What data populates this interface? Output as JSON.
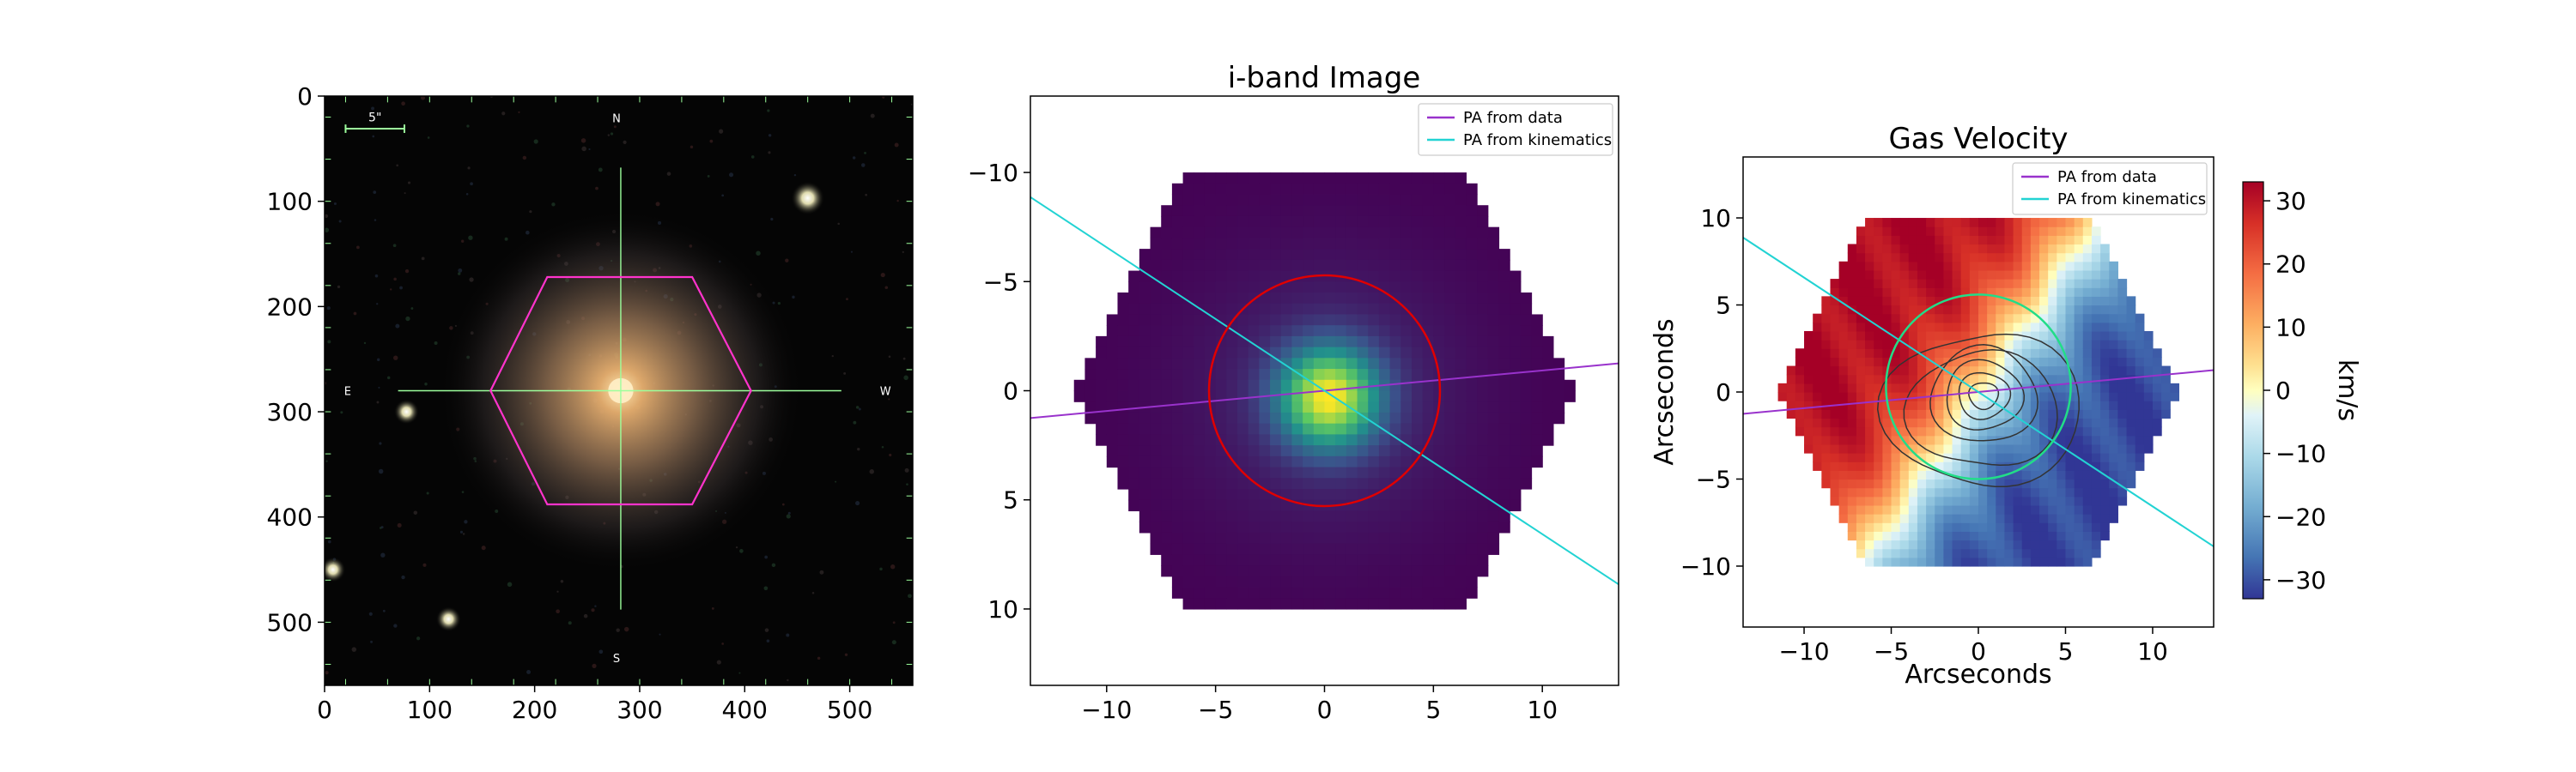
{
  "colors": {
    "pa_data": "#9932cc",
    "pa_kinematics": "#22d3d3",
    "hexagon": "#ff33cc",
    "crosshair": "#9cff9c",
    "circle_red": "#e00000",
    "circle_green": "#22dd88",
    "contour": "#333333"
  },
  "chart_data": [
    {
      "panel": "sdss-image",
      "type": "image",
      "title": "",
      "xlabel": "",
      "ylabel": "",
      "xlim": [
        0,
        560
      ],
      "ylim": [
        560,
        0
      ],
      "xticks": [
        0,
        100,
        200,
        300,
        400,
        500
      ],
      "yticks": [
        0,
        100,
        200,
        300,
        400,
        500
      ],
      "scalebar_label": "5\"",
      "compass": {
        "north": "N",
        "south": "S",
        "east": "E",
        "west": "W"
      },
      "galaxy_center": [
        282,
        280
      ],
      "hexagon_vertices": [
        [
          212,
          172
        ],
        [
          350,
          172
        ],
        [
          406,
          280
        ],
        [
          350,
          388
        ],
        [
          212,
          388
        ],
        [
          158,
          280
        ]
      ],
      "stars": [
        [
          460,
          97
        ],
        [
          78,
          300
        ],
        [
          118,
          497
        ],
        [
          8,
          450
        ]
      ]
    },
    {
      "panel": "i-band-image",
      "type": "heatmap",
      "title": "i-band Image",
      "xlabel": "",
      "ylabel": "",
      "xlim": [
        -13.5,
        13.5
      ],
      "ylim": [
        13.5,
        -13.5
      ],
      "xticks": [
        -10,
        -5,
        0,
        5,
        10
      ],
      "yticks": [
        -10,
        -5,
        0,
        5,
        10
      ],
      "legend": [
        {
          "label": "PA from data",
          "color": "#9932cc"
        },
        {
          "label": "PA from kinematics",
          "color": "#22d3d3"
        }
      ],
      "legend_position": "top-right",
      "pa_data_line": [
        [
          -14,
          1.3
        ],
        [
          14,
          -1.3
        ]
      ],
      "pa_kinematics_line": [
        [
          -14,
          -9.2
        ],
        [
          14,
          9.2
        ]
      ],
      "circle": {
        "center": [
          0,
          0
        ],
        "radius": 5.3
      }
    },
    {
      "panel": "gas-velocity",
      "type": "heatmap",
      "title": "Gas Velocity",
      "xlabel": "Arcseconds",
      "ylabel": "Arcseconds",
      "xlim": [
        -13.5,
        13.5
      ],
      "ylim": [
        -13.5,
        13.5
      ],
      "xticks": [
        -10,
        -5,
        0,
        5,
        10
      ],
      "yticks": [
        -10,
        -5,
        0,
        5,
        10
      ],
      "legend": [
        {
          "label": "PA from data",
          "color": "#9932cc"
        },
        {
          "label": "PA from kinematics",
          "color": "#22d3d3"
        }
      ],
      "legend_position": "top-right",
      "colorbar": {
        "label": "km/s",
        "range": [
          -33,
          33
        ],
        "ticks": [
          30,
          20,
          10,
          0,
          -10,
          -20,
          -30
        ]
      },
      "pa_data_line": [
        [
          -14,
          -1.3
        ],
        [
          14,
          1.3
        ]
      ],
      "pa_kinematics_line": [
        [
          -14,
          9.2
        ],
        [
          14,
          -9.2
        ]
      ],
      "circle": {
        "center": [
          0,
          0.3
        ],
        "radius": 5.3
      },
      "contour_levels": [
        0.8,
        1.4,
        2.1,
        2.9,
        3.8,
        5.0
      ]
    }
  ]
}
